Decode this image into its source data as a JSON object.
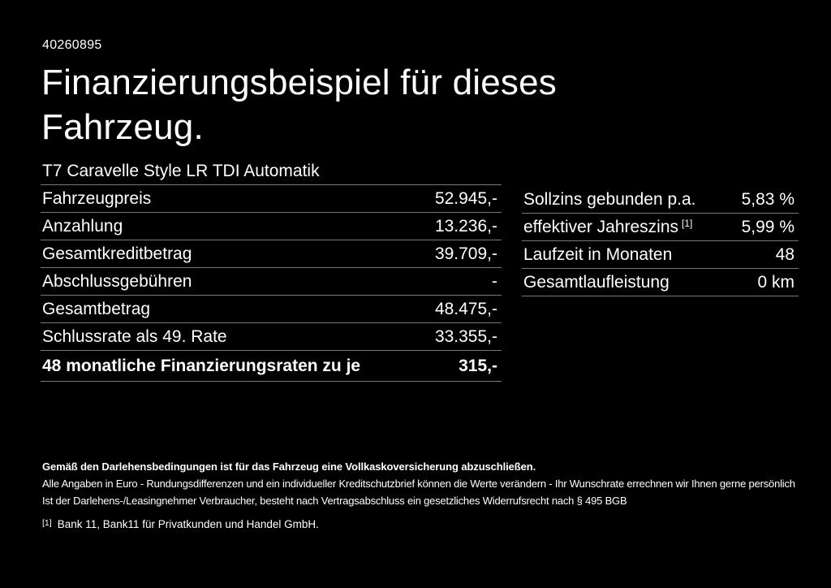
{
  "page": {
    "id_number": "40260895",
    "title_line1": "Finanzierungsbeispiel für dieses",
    "title_line2": "Fahrzeug.",
    "vehicle_model": "T7 Caravelle Style LR TDI Automatik"
  },
  "finance_table": {
    "rows": [
      {
        "label": "Fahrzeugpreis",
        "value": "52.945,-"
      },
      {
        "label": "Anzahlung",
        "value": "13.236,-"
      },
      {
        "label": "Gesamtkreditbetrag",
        "value": "39.709,-"
      },
      {
        "label": "Abschlussgebühren",
        "value": "-"
      },
      {
        "label": "Gesamtbetrag",
        "value": "48.475,-"
      },
      {
        "label": "Schlussrate als 49. Rate",
        "value": "33.355,-"
      },
      {
        "label": "48 monatliche Finanzierungsraten zu je",
        "value": "315,-"
      }
    ]
  },
  "conditions_table": {
    "rows": [
      {
        "label": "Sollzins gebunden p.a.",
        "value": "5,83 %"
      },
      {
        "label": "effektiver Jahreszins",
        "label_sup": "[1]",
        "value": "5,99 %"
      },
      {
        "label": "Laufzeit in Monaten",
        "value": "48"
      },
      {
        "label": "Gesamtlaufleistung",
        "value": "0 km"
      }
    ]
  },
  "footer": {
    "insurance_note": "Gemäß den Darlehensbedingungen ist für das Fahrzeug eine Vollkaskoversicherung abzuschließen.",
    "disclaimer_line1": "Alle Angaben in Euro - Rundungsdifferenzen und ein individueller Kreditschutzbrief können die Werte verändern - Ihr Wunschrate errechnen wir Ihnen gerne persönlich",
    "disclaimer_line2": "Ist der Darlehens-/Leasingnehmer Verbraucher, besteht nach Vertragsabschluss ein gesetzliches Widerrufsrecht nach § 495 BGB",
    "footnote_marker": "[1]",
    "footnote_text": "Bank 11, Bank11 für Privatkunden und Handel GmbH."
  },
  "colors": {
    "background": "#000000",
    "text": "#ffffff",
    "separator": "#777777"
  }
}
